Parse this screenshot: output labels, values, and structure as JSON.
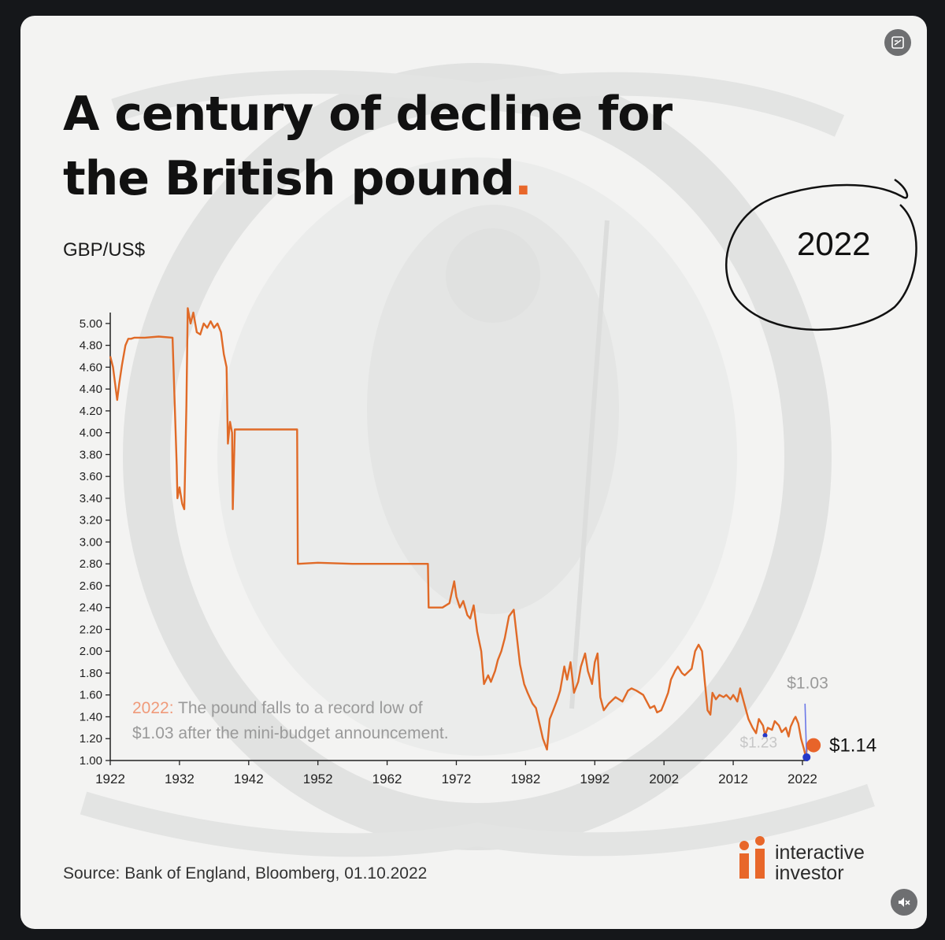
{
  "title": {
    "text": "A century of decline for the British pound",
    "period": "."
  },
  "unit_label": "GBP/US$",
  "year_annotation": "2022",
  "chart_data": {
    "type": "line",
    "title": "A century of decline for the British pound.",
    "ylabel": "GBP/US$",
    "xlabel": "",
    "xlim": [
      1922,
      2022.8
    ],
    "ylim": [
      1.0,
      5.1
    ],
    "xticks": [
      "1922",
      "1932",
      "1942",
      "1952",
      "1962",
      "1972",
      "1982",
      "1992",
      "2002",
      "2012",
      "2022"
    ],
    "yticks": [
      "5.00",
      "4.80",
      "4.60",
      "4.40",
      "4.20",
      "4.00",
      "3.80",
      "3.60",
      "3.40",
      "3.20",
      "3.00",
      "2.80",
      "2.60",
      "2.40",
      "2.20",
      "2.00",
      "1.80",
      "1.60",
      "1.40",
      "1.20",
      "1.00"
    ],
    "line_color": "#e06a27",
    "series": [
      {
        "x": [
          1922,
          1922.4,
          1923,
          1923.3,
          1923.7,
          1924.2,
          1924.6,
          1925,
          1925.5,
          1927,
          1929,
          1931,
          1931.6,
          1931.7,
          1932,
          1932.4,
          1932.7,
          1933,
          1933.2,
          1933.6,
          1934,
          1934.5,
          1935,
          1935.5,
          1936,
          1936.5,
          1937,
          1937.5,
          1938,
          1938.4,
          1938.8,
          1939,
          1939.3,
          1939.6,
          1939.7,
          1940,
          1945,
          1949,
          1949.1,
          1952,
          1957,
          1962,
          1967,
          1967.9,
          1968,
          1970,
          1971,
          1971.7,
          1972,
          1972.5,
          1973,
          1973.6,
          1974,
          1974.5,
          1975,
          1975.6,
          1976,
          1976.6,
          1977,
          1977.6,
          1978,
          1978.5,
          1979,
          1979.6,
          1980.3,
          1980.8,
          1981.2,
          1981.8,
          1982.3,
          1983,
          1983.5,
          1984,
          1984.5,
          1985.1,
          1985.5,
          1986,
          1986.6,
          1987,
          1987.6,
          1988,
          1988.5,
          1989,
          1989.6,
          1990,
          1990.6,
          1991,
          1991.6,
          1992,
          1992.4,
          1992.8,
          1993.3,
          1994,
          1995,
          1996,
          1996.8,
          1997.3,
          1998,
          1999,
          2000,
          2000.6,
          2001,
          2001.6,
          2002,
          2002.6,
          2003,
          2003.6,
          2004,
          2004.6,
          2005,
          2006,
          2006.5,
          2007,
          2007.5,
          2007.9,
          2008.3,
          2008.7,
          2009,
          2009.5,
          2010,
          2010.6,
          2011,
          2011.6,
          2012,
          2012.6,
          2013,
          2013.6,
          2014.2,
          2014.8,
          2015.3,
          2015.7,
          2016.3,
          2016.6,
          2017,
          2017.6,
          2018,
          2018.6,
          2019,
          2019.6,
          2020,
          2020.3,
          2020.8,
          2021,
          2021.4,
          2021.8,
          2022.2,
          2022.5,
          2022.7
        ],
        "y": [
          4.7,
          4.6,
          4.3,
          4.45,
          4.62,
          4.8,
          4.86,
          4.86,
          4.87,
          4.87,
          4.88,
          4.87,
          3.7,
          3.4,
          3.5,
          3.35,
          3.3,
          4.25,
          5.14,
          5.0,
          5.1,
          4.92,
          4.9,
          5.0,
          4.96,
          5.02,
          4.96,
          5.0,
          4.92,
          4.72,
          4.6,
          3.9,
          4.1,
          4.0,
          3.3,
          4.03,
          4.03,
          4.03,
          2.8,
          2.81,
          2.8,
          2.8,
          2.8,
          2.8,
          2.4,
          2.4,
          2.44,
          2.64,
          2.5,
          2.4,
          2.46,
          2.33,
          2.3,
          2.42,
          2.18,
          2.0,
          1.7,
          1.78,
          1.72,
          1.82,
          1.92,
          2.0,
          2.12,
          2.32,
          2.38,
          2.1,
          1.88,
          1.7,
          1.62,
          1.52,
          1.48,
          1.34,
          1.2,
          1.1,
          1.38,
          1.46,
          1.56,
          1.64,
          1.86,
          1.74,
          1.9,
          1.62,
          1.72,
          1.86,
          1.98,
          1.82,
          1.7,
          1.9,
          1.98,
          1.58,
          1.46,
          1.52,
          1.58,
          1.54,
          1.64,
          1.66,
          1.64,
          1.6,
          1.48,
          1.5,
          1.44,
          1.46,
          1.52,
          1.62,
          1.74,
          1.82,
          1.86,
          1.8,
          1.78,
          1.84,
          2.0,
          2.06,
          2.0,
          1.72,
          1.46,
          1.42,
          1.62,
          1.56,
          1.6,
          1.58,
          1.6,
          1.56,
          1.6,
          1.54,
          1.66,
          1.52,
          1.38,
          1.3,
          1.25,
          1.38,
          1.32,
          1.23,
          1.3,
          1.28,
          1.36,
          1.32,
          1.26,
          1.3,
          1.22,
          1.31,
          1.38,
          1.4,
          1.34,
          1.2,
          1.11,
          1.03,
          1.14
        ]
      }
    ],
    "lowest_marker": {
      "x": 2022.6,
      "y": 1.03,
      "label": "$1.03",
      "color": "#2438c9"
    },
    "marker_2016": {
      "x": 2016.6,
      "y": 1.23,
      "label": "$1.23",
      "color": "#2438c9"
    },
    "current_marker": {
      "x": 2022.7,
      "y": 1.14,
      "label": "$1.14",
      "color": "#e8642a"
    },
    "annotation": {
      "year": "2022:",
      "line1": " The pound falls to a record low of",
      "line2": "$1.03 after the mini-budget announcement."
    }
  },
  "source": "Source: Bank of England, Bloomberg, 01.10.2022",
  "logo": {
    "line1": "interactive",
    "line2": "investor",
    "icon": "interactive-investor-logo-icon"
  },
  "ui": {
    "top_button_icon": "image-crop-icon",
    "bottom_button_icon": "mute-speaker-icon"
  },
  "colors": {
    "accent": "#e8672a",
    "line": "#e06a27",
    "marker_blue": "#2438c9",
    "card_bg": "#f3f3f2"
  }
}
